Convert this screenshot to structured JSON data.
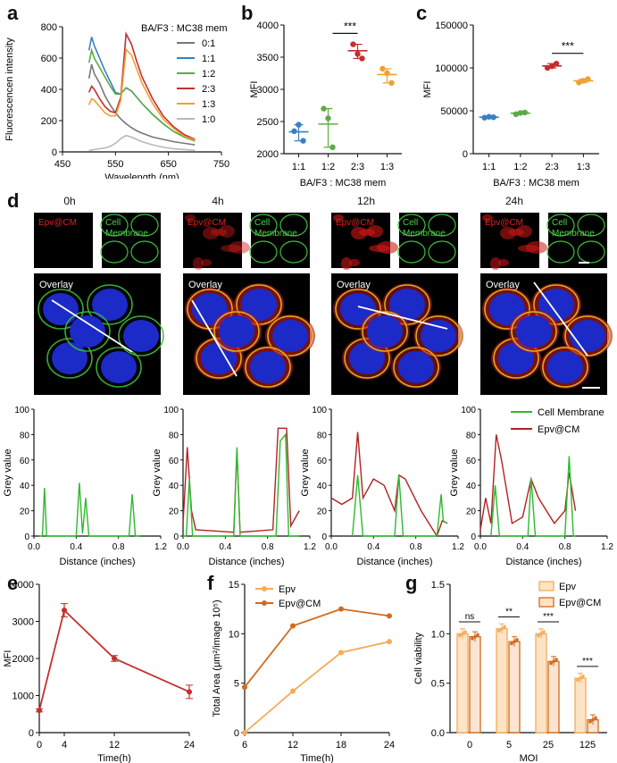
{
  "panels": {
    "a": "a",
    "b": "b",
    "c": "c",
    "d": "d",
    "e": "e",
    "f": "f",
    "g": "g"
  },
  "colors": {
    "gray1": "#777777",
    "blue": "#3a7fc2",
    "green": "#5aab46",
    "red": "#c62d2d",
    "orange": "#f0a030",
    "lightgray": "#b8b8b8",
    "epv_light": "#f5ab5a",
    "epv_dark": "#d26a1e",
    "cm_green": "#2fb92f",
    "epv_red": "#b22222",
    "line_e": "#c53030"
  },
  "chart_data": [
    {
      "id": "a",
      "type": "line",
      "xlabel": "Wavelength (nm)",
      "ylabel": "Fluorescencen intensity",
      "xlim": [
        450,
        750
      ],
      "ylim": [
        0,
        800
      ],
      "xticks": [
        "450",
        "550",
        "650",
        "750"
      ],
      "yticks": [
        "0",
        "200",
        "400",
        "600",
        "800"
      ],
      "legend_title": "BA/F3 : MC38 mem",
      "x": [
        500,
        505,
        510,
        520,
        530,
        540,
        550,
        560,
        570,
        580,
        590,
        600,
        620,
        640,
        660,
        680,
        700
      ],
      "series": [
        {
          "name": "0:1",
          "values": [
            470,
            560,
            500,
            440,
            360,
            300,
            250,
            210,
            180,
            155,
            135,
            120,
            95,
            80,
            65,
            55,
            45
          ]
        },
        {
          "name": "1:1",
          "values": [
            650,
            735,
            680,
            600,
            520,
            450,
            380,
            370,
            410,
            390,
            350,
            310,
            240,
            180,
            130,
            95,
            70
          ]
        },
        {
          "name": "1:2",
          "values": [
            570,
            650,
            600,
            540,
            480,
            420,
            370,
            370,
            410,
            390,
            350,
            310,
            240,
            180,
            130,
            95,
            70
          ]
        },
        {
          "name": "2:3",
          "values": [
            380,
            420,
            400,
            340,
            290,
            260,
            250,
            350,
            755,
            690,
            580,
            480,
            340,
            230,
            160,
            110,
            80
          ]
        },
        {
          "name": "1:3",
          "values": [
            300,
            340,
            330,
            290,
            250,
            230,
            230,
            330,
            655,
            620,
            530,
            440,
            310,
            210,
            150,
            100,
            75
          ]
        },
        {
          "name": "1:0",
          "values": [
            10,
            12,
            15,
            20,
            25,
            35,
            55,
            85,
            105,
            95,
            80,
            65,
            45,
            30,
            20,
            15,
            10
          ]
        }
      ]
    },
    {
      "id": "b",
      "type": "scatter",
      "xlabel": "BA/F3 : MC38 mem",
      "ylabel": "MFI",
      "categories": [
        "1:1",
        "1:2",
        "2:3",
        "1:3"
      ],
      "ylim": [
        2000,
        4000
      ],
      "yticks": [
        "2000",
        "2500",
        "3000",
        "3500",
        "4000"
      ],
      "points": [
        [
          2350,
          2450,
          2200
        ],
        [
          2700,
          2550,
          2100
        ],
        [
          3700,
          3550,
          3480
        ],
        [
          3320,
          3250,
          3100
        ]
      ],
      "means": [
        2340,
        2460,
        3600,
        3230
      ],
      "significance": "***"
    },
    {
      "id": "c",
      "type": "scatter",
      "xlabel": "BA/F3 : MC38 mem",
      "ylabel": "MFI",
      "categories": [
        "1:1",
        "1:2",
        "2:3",
        "1:3"
      ],
      "ylim": [
        0,
        150000
      ],
      "yticks": [
        "0",
        "50000",
        "100000",
        "150000"
      ],
      "points": [
        [
          42000,
          43000,
          42500
        ],
        [
          46000,
          47500,
          48000
        ],
        [
          100000,
          102000,
          105000
        ],
        [
          83000,
          85000,
          87000
        ]
      ],
      "means": [
        42500,
        47200,
        102300,
        85000
      ],
      "significance": "***"
    },
    {
      "id": "d",
      "type": "line",
      "xlabel": "Distance (inches)",
      "ylabel": "Grey value",
      "ylim": [
        0,
        100
      ],
      "yticks": [
        "0",
        "20",
        "40",
        "60",
        "80",
        "100"
      ],
      "xticks": [
        "0.0",
        "0.4",
        "0.8",
        "1.2"
      ],
      "xlim": [
        0,
        1.2
      ],
      "legend": [
        "Cell Membrane",
        "Epv@CM"
      ],
      "plots": [
        {
          "title": "0h",
          "cm": [
            [
              0.05,
              0
            ],
            [
              0.08,
              0
            ],
            [
              0.1,
              38
            ],
            [
              0.12,
              0
            ],
            [
              0.4,
              0
            ],
            [
              0.43,
              42
            ],
            [
              0.46,
              2
            ],
            [
              0.49,
              30
            ],
            [
              0.52,
              0
            ],
            [
              0.9,
              0
            ],
            [
              0.93,
              33
            ],
            [
              0.96,
              0
            ],
            [
              1.0,
              0
            ]
          ],
          "epv": []
        },
        {
          "title": "4h",
          "cm": [
            [
              0,
              0
            ],
            [
              0.03,
              0
            ],
            [
              0.06,
              45
            ],
            [
              0.09,
              0
            ],
            [
              0.48,
              0
            ],
            [
              0.51,
              70
            ],
            [
              0.54,
              0
            ],
            [
              0.88,
              0
            ],
            [
              0.92,
              75
            ],
            [
              0.97,
              80
            ],
            [
              1.0,
              0
            ],
            [
              1.1,
              0
            ]
          ],
          "epv": [
            [
              0,
              10
            ],
            [
              0.04,
              70
            ],
            [
              0.08,
              20
            ],
            [
              0.12,
              5
            ],
            [
              0.3,
              4
            ],
            [
              0.48,
              3
            ],
            [
              0.51,
              68
            ],
            [
              0.54,
              3
            ],
            [
              0.85,
              5
            ],
            [
              0.9,
              85
            ],
            [
              0.98,
              85
            ],
            [
              1.02,
              8
            ],
            [
              1.1,
              20
            ]
          ]
        },
        {
          "title": "12h",
          "cm": [
            [
              0.2,
              0
            ],
            [
              0.25,
              48
            ],
            [
              0.3,
              0
            ],
            [
              0.6,
              0
            ],
            [
              0.64,
              48
            ],
            [
              0.68,
              0
            ],
            [
              1.0,
              0
            ],
            [
              1.04,
              33
            ],
            [
              1.06,
              12
            ],
            [
              1.1,
              10
            ]
          ],
          "epv": [
            [
              0,
              30
            ],
            [
              0.1,
              25
            ],
            [
              0.2,
              30
            ],
            [
              0.25,
              82
            ],
            [
              0.3,
              30
            ],
            [
              0.4,
              45
            ],
            [
              0.5,
              40
            ],
            [
              0.6,
              20
            ],
            [
              0.64,
              48
            ],
            [
              0.7,
              45
            ],
            [
              0.85,
              20
            ],
            [
              1.0,
              0
            ],
            [
              1.05,
              12
            ],
            [
              1.1,
              10
            ]
          ]
        },
        {
          "title": "24h",
          "cm": [
            [
              0.1,
              0
            ],
            [
              0.14,
              40
            ],
            [
              0.18,
              0
            ],
            [
              0.45,
              0
            ],
            [
              0.48,
              46
            ],
            [
              0.52,
              0
            ],
            [
              0.8,
              0
            ],
            [
              0.84,
              63
            ],
            [
              0.88,
              0
            ],
            [
              0.9,
              0
            ]
          ],
          "epv": [
            [
              0,
              5
            ],
            [
              0.05,
              30
            ],
            [
              0.1,
              10
            ],
            [
              0.15,
              80
            ],
            [
              0.2,
              60
            ],
            [
              0.3,
              10
            ],
            [
              0.4,
              15
            ],
            [
              0.48,
              45
            ],
            [
              0.55,
              30
            ],
            [
              0.7,
              10
            ],
            [
              0.8,
              20
            ],
            [
              0.84,
              50
            ],
            [
              0.9,
              20
            ]
          ]
        }
      ]
    },
    {
      "id": "e",
      "type": "line",
      "xlabel": "Time(h)",
      "ylabel": "MFI",
      "x": [
        0,
        4,
        12,
        24
      ],
      "xticks": [
        "0",
        "4",
        "12",
        "24"
      ],
      "values": [
        600,
        3300,
        2000,
        1100
      ],
      "err": [
        40,
        180,
        80,
        180
      ],
      "ylim": [
        0,
        4000
      ],
      "yticks": [
        "0",
        "1000",
        "2000",
        "3000",
        "4000"
      ]
    },
    {
      "id": "f",
      "type": "line",
      "xlabel": "Time(h)",
      "ylabel": "Total Area (μm²/image 10⁵)",
      "x": [
        6,
        12,
        18,
        24
      ],
      "xticks": [
        "6",
        "12",
        "18",
        "24"
      ],
      "ylim": [
        0,
        15
      ],
      "yticks": [
        "0",
        "5",
        "10",
        "15"
      ],
      "series": [
        {
          "name": "Epv",
          "values": [
            0,
            4.2,
            8.1,
            9.2
          ]
        },
        {
          "name": "Epv@CM",
          "values": [
            4.6,
            10.8,
            12.5,
            11.8
          ]
        }
      ]
    },
    {
      "id": "g",
      "type": "bar",
      "xlabel": "MOI",
      "ylabel": "Cell viability",
      "categories": [
        "0",
        "5",
        "25",
        "125"
      ],
      "ylim": [
        0,
        1.5
      ],
      "yticks": [
        "0.0",
        "0.5",
        "1.0",
        "1.5"
      ],
      "series": [
        {
          "name": "Epv",
          "values": [
            1.0,
            1.05,
            1.0,
            0.55
          ]
        },
        {
          "name": "Epv@CM",
          "values": [
            0.97,
            0.92,
            0.72,
            0.13
          ]
        }
      ],
      "significance": [
        "ns",
        "**",
        "***",
        "***"
      ]
    }
  ],
  "micrographs": {
    "labels": {
      "epv": "Epv@CM",
      "cm": "Cell\nMembrane",
      "overlay": "Overlay"
    }
  }
}
